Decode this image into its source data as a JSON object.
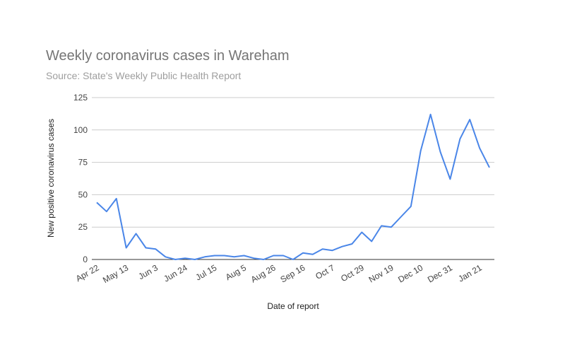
{
  "chart_data": {
    "type": "line",
    "title": "Weekly coronavirus cases in Wareham",
    "subtitle": "Source: State's Weekly Public Health Report",
    "x_label": "Date of report",
    "y_label": "New positive coronavirus cases",
    "categories": [
      "Apr 22",
      null,
      null,
      "May 13",
      null,
      null,
      "Jun 3",
      null,
      null,
      "Jun 24",
      null,
      null,
      "Jul 15",
      null,
      null,
      "Aug 5",
      null,
      null,
      "Aug 26",
      null,
      null,
      "Sep 16",
      null,
      null,
      "Oct 7",
      null,
      null,
      "Oct 29",
      null,
      null,
      "Nov 19",
      null,
      null,
      "Dec 10",
      null,
      null,
      "Dec 31",
      null,
      null,
      "Jan 21",
      null
    ],
    "values": [
      44,
      37,
      47,
      9,
      20,
      9,
      8,
      2,
      0,
      1,
      0,
      2,
      3,
      3,
      2,
      3,
      1,
      0,
      3,
      3,
      0,
      5,
      4,
      8,
      7,
      10,
      12,
      21,
      14,
      26,
      25,
      33,
      41,
      84,
      112,
      83,
      62,
      93,
      108,
      86,
      71
    ],
    "color": "#4a86e8",
    "ylim": [
      0,
      125
    ],
    "yticks": [
      0,
      25,
      50,
      75,
      100,
      125
    ],
    "grid": true
  }
}
